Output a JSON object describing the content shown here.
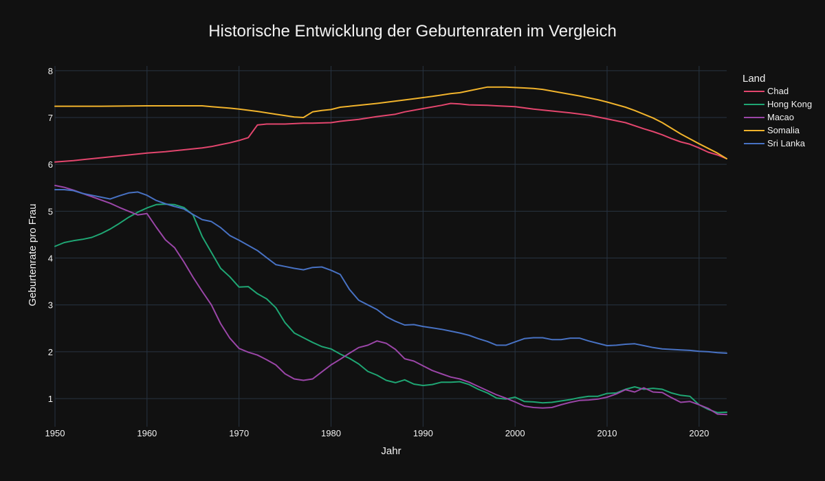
{
  "chart_data": {
    "type": "line",
    "title": "Historische Entwicklung der Geburtenraten im Vergleich",
    "xlabel": "Jahr",
    "ylabel": "Geburtenrate pro Frau",
    "xlim": [
      1950,
      2023
    ],
    "ylim": [
      0.4,
      8.1
    ],
    "x_ticks": [
      1950,
      1960,
      1970,
      1980,
      1990,
      2000,
      2010,
      2020
    ],
    "y_ticks": [
      1,
      2,
      3,
      4,
      5,
      6,
      7,
      8
    ],
    "grid": true,
    "legend": {
      "title": "Land",
      "position": "right"
    },
    "series": [
      {
        "name": "Chad",
        "color": "#e4466e",
        "points": [
          [
            1950,
            6.05
          ],
          [
            1952,
            6.08
          ],
          [
            1955,
            6.14
          ],
          [
            1958,
            6.2
          ],
          [
            1960,
            6.24
          ],
          [
            1962,
            6.27
          ],
          [
            1964,
            6.31
          ],
          [
            1966,
            6.35
          ],
          [
            1967,
            6.38
          ],
          [
            1968,
            6.42
          ],
          [
            1969,
            6.46
          ],
          [
            1970,
            6.51
          ],
          [
            1971,
            6.57
          ],
          [
            1972,
            6.84
          ],
          [
            1973,
            6.86
          ],
          [
            1975,
            6.86
          ],
          [
            1977,
            6.88
          ],
          [
            1978,
            6.88
          ],
          [
            1980,
            6.89
          ],
          [
            1981,
            6.92
          ],
          [
            1983,
            6.96
          ],
          [
            1985,
            7.02
          ],
          [
            1987,
            7.07
          ],
          [
            1988,
            7.12
          ],
          [
            1990,
            7.19
          ],
          [
            1992,
            7.26
          ],
          [
            1993,
            7.3
          ],
          [
            1994,
            7.29
          ],
          [
            1995,
            7.27
          ],
          [
            1997,
            7.26
          ],
          [
            1998,
            7.25
          ],
          [
            2000,
            7.23
          ],
          [
            2002,
            7.18
          ],
          [
            2004,
            7.14
          ],
          [
            2006,
            7.1
          ],
          [
            2008,
            7.05
          ],
          [
            2010,
            6.97
          ],
          [
            2012,
            6.89
          ],
          [
            2014,
            6.76
          ],
          [
            2015,
            6.7
          ],
          [
            2016,
            6.63
          ],
          [
            2017,
            6.55
          ],
          [
            2018,
            6.48
          ],
          [
            2019,
            6.43
          ],
          [
            2020,
            6.35
          ],
          [
            2021,
            6.26
          ],
          [
            2022,
            6.2
          ],
          [
            2023,
            6.12
          ]
        ]
      },
      {
        "name": "Hong Kong",
        "color": "#1fa774",
        "points": [
          [
            1950,
            4.25
          ],
          [
            1951,
            4.33
          ],
          [
            1952,
            4.37
          ],
          [
            1953,
            4.4
          ],
          [
            1954,
            4.44
          ],
          [
            1955,
            4.52
          ],
          [
            1956,
            4.62
          ],
          [
            1957,
            4.74
          ],
          [
            1958,
            4.87
          ],
          [
            1959,
            4.98
          ],
          [
            1960,
            5.07
          ],
          [
            1961,
            5.14
          ],
          [
            1962,
            5.15
          ],
          [
            1963,
            5.14
          ],
          [
            1964,
            5.08
          ],
          [
            1965,
            4.92
          ],
          [
            1966,
            4.46
          ],
          [
            1967,
            4.12
          ],
          [
            1968,
            3.78
          ],
          [
            1969,
            3.6
          ],
          [
            1970,
            3.38
          ],
          [
            1971,
            3.39
          ],
          [
            1972,
            3.24
          ],
          [
            1973,
            3.13
          ],
          [
            1974,
            2.94
          ],
          [
            1975,
            2.62
          ],
          [
            1976,
            2.4
          ],
          [
            1977,
            2.3
          ],
          [
            1978,
            2.2
          ],
          [
            1979,
            2.11
          ],
          [
            1980,
            2.06
          ],
          [
            1981,
            1.95
          ],
          [
            1982,
            1.86
          ],
          [
            1983,
            1.74
          ],
          [
            1984,
            1.58
          ],
          [
            1985,
            1.5
          ],
          [
            1986,
            1.39
          ],
          [
            1987,
            1.34
          ],
          [
            1988,
            1.4
          ],
          [
            1989,
            1.31
          ],
          [
            1990,
            1.28
          ],
          [
            1991,
            1.3
          ],
          [
            1992,
            1.35
          ],
          [
            1993,
            1.35
          ],
          [
            1994,
            1.36
          ],
          [
            1995,
            1.3
          ],
          [
            1996,
            1.2
          ],
          [
            1997,
            1.12
          ],
          [
            1998,
            1.01
          ],
          [
            1999,
            0.99
          ],
          [
            2000,
            1.03
          ],
          [
            2001,
            0.94
          ],
          [
            2002,
            0.93
          ],
          [
            2003,
            0.91
          ],
          [
            2004,
            0.92
          ],
          [
            2005,
            0.95
          ],
          [
            2006,
            0.98
          ],
          [
            2007,
            1.02
          ],
          [
            2008,
            1.05
          ],
          [
            2009,
            1.05
          ],
          [
            2010,
            1.11
          ],
          [
            2011,
            1.12
          ],
          [
            2012,
            1.2
          ],
          [
            2013,
            1.25
          ],
          [
            2014,
            1.2
          ],
          [
            2015,
            1.22
          ],
          [
            2016,
            1.2
          ],
          [
            2017,
            1.12
          ],
          [
            2018,
            1.07
          ],
          [
            2019,
            1.05
          ],
          [
            2020,
            0.87
          ],
          [
            2021,
            0.77
          ],
          [
            2022,
            0.7
          ],
          [
            2023,
            0.71
          ]
        ]
      },
      {
        "name": "Macao",
        "color": "#9b46a8",
        "points": [
          [
            1950,
            5.55
          ],
          [
            1951,
            5.51
          ],
          [
            1952,
            5.45
          ],
          [
            1953,
            5.38
          ],
          [
            1954,
            5.31
          ],
          [
            1955,
            5.24
          ],
          [
            1956,
            5.17
          ],
          [
            1957,
            5.08
          ],
          [
            1958,
            5.0
          ],
          [
            1959,
            4.92
          ],
          [
            1960,
            4.95
          ],
          [
            1961,
            4.66
          ],
          [
            1962,
            4.39
          ],
          [
            1963,
            4.22
          ],
          [
            1964,
            3.92
          ],
          [
            1965,
            3.59
          ],
          [
            1966,
            3.29
          ],
          [
            1967,
            3.0
          ],
          [
            1968,
            2.6
          ],
          [
            1969,
            2.29
          ],
          [
            1970,
            2.07
          ],
          [
            1971,
            1.99
          ],
          [
            1972,
            1.93
          ],
          [
            1973,
            1.83
          ],
          [
            1974,
            1.72
          ],
          [
            1975,
            1.53
          ],
          [
            1976,
            1.42
          ],
          [
            1977,
            1.39
          ],
          [
            1978,
            1.42
          ],
          [
            1979,
            1.57
          ],
          [
            1980,
            1.72
          ],
          [
            1981,
            1.84
          ],
          [
            1982,
            1.97
          ],
          [
            1983,
            2.09
          ],
          [
            1984,
            2.14
          ],
          [
            1985,
            2.23
          ],
          [
            1986,
            2.18
          ],
          [
            1987,
            2.05
          ],
          [
            1988,
            1.85
          ],
          [
            1989,
            1.8
          ],
          [
            1990,
            1.7
          ],
          [
            1991,
            1.6
          ],
          [
            1992,
            1.53
          ],
          [
            1993,
            1.46
          ],
          [
            1994,
            1.42
          ],
          [
            1995,
            1.35
          ],
          [
            1996,
            1.26
          ],
          [
            1997,
            1.17
          ],
          [
            1998,
            1.08
          ],
          [
            1999,
            1.01
          ],
          [
            2000,
            0.93
          ],
          [
            2001,
            0.84
          ],
          [
            2002,
            0.81
          ],
          [
            2003,
            0.8
          ],
          [
            2004,
            0.81
          ],
          [
            2005,
            0.87
          ],
          [
            2006,
            0.92
          ],
          [
            2007,
            0.96
          ],
          [
            2008,
            0.97
          ],
          [
            2009,
            0.99
          ],
          [
            2010,
            1.03
          ],
          [
            2011,
            1.1
          ],
          [
            2012,
            1.19
          ],
          [
            2013,
            1.14
          ],
          [
            2014,
            1.23
          ],
          [
            2015,
            1.14
          ],
          [
            2016,
            1.13
          ],
          [
            2017,
            1.02
          ],
          [
            2018,
            0.92
          ],
          [
            2019,
            0.94
          ],
          [
            2020,
            0.87
          ],
          [
            2021,
            0.79
          ],
          [
            2022,
            0.67
          ],
          [
            2023,
            0.66
          ]
        ]
      },
      {
        "name": "Somalia",
        "color": "#f2b42c",
        "points": [
          [
            1950,
            7.24
          ],
          [
            1955,
            7.24
          ],
          [
            1960,
            7.25
          ],
          [
            1966,
            7.25
          ],
          [
            1967,
            7.23
          ],
          [
            1969,
            7.2
          ],
          [
            1970,
            7.18
          ],
          [
            1972,
            7.13
          ],
          [
            1974,
            7.07
          ],
          [
            1976,
            7.01
          ],
          [
            1977,
            7.0
          ],
          [
            1978,
            7.12
          ],
          [
            1979,
            7.15
          ],
          [
            1980,
            7.17
          ],
          [
            1981,
            7.22
          ],
          [
            1983,
            7.26
          ],
          [
            1985,
            7.3
          ],
          [
            1987,
            7.35
          ],
          [
            1989,
            7.4
          ],
          [
            1991,
            7.45
          ],
          [
            1993,
            7.51
          ],
          [
            1994,
            7.53
          ],
          [
            1995,
            7.57
          ],
          [
            1997,
            7.65
          ],
          [
            1998,
            7.65
          ],
          [
            1999,
            7.65
          ],
          [
            2001,
            7.63
          ],
          [
            2002,
            7.62
          ],
          [
            2003,
            7.6
          ],
          [
            2005,
            7.53
          ],
          [
            2007,
            7.46
          ],
          [
            2009,
            7.38
          ],
          [
            2010,
            7.33
          ],
          [
            2012,
            7.22
          ],
          [
            2013,
            7.15
          ],
          [
            2015,
            6.99
          ],
          [
            2016,
            6.89
          ],
          [
            2018,
            6.65
          ],
          [
            2020,
            6.44
          ],
          [
            2022,
            6.24
          ],
          [
            2023,
            6.12
          ]
        ]
      },
      {
        "name": "Sri Lanka",
        "color": "#4872c4",
        "points": [
          [
            1950,
            5.46
          ],
          [
            1951,
            5.46
          ],
          [
            1952,
            5.44
          ],
          [
            1953,
            5.38
          ],
          [
            1954,
            5.34
          ],
          [
            1955,
            5.3
          ],
          [
            1956,
            5.26
          ],
          [
            1957,
            5.33
          ],
          [
            1958,
            5.39
          ],
          [
            1959,
            5.41
          ],
          [
            1960,
            5.34
          ],
          [
            1961,
            5.23
          ],
          [
            1962,
            5.16
          ],
          [
            1963,
            5.1
          ],
          [
            1964,
            5.05
          ],
          [
            1965,
            4.93
          ],
          [
            1966,
            4.82
          ],
          [
            1967,
            4.78
          ],
          [
            1968,
            4.65
          ],
          [
            1969,
            4.48
          ],
          [
            1970,
            4.38
          ],
          [
            1971,
            4.27
          ],
          [
            1972,
            4.16
          ],
          [
            1973,
            4.01
          ],
          [
            1974,
            3.86
          ],
          [
            1975,
            3.82
          ],
          [
            1976,
            3.78
          ],
          [
            1977,
            3.75
          ],
          [
            1978,
            3.8
          ],
          [
            1979,
            3.81
          ],
          [
            1980,
            3.74
          ],
          [
            1981,
            3.65
          ],
          [
            1982,
            3.33
          ],
          [
            1983,
            3.1
          ],
          [
            1984,
            3.0
          ],
          [
            1985,
            2.9
          ],
          [
            1986,
            2.75
          ],
          [
            1987,
            2.65
          ],
          [
            1988,
            2.57
          ],
          [
            1989,
            2.58
          ],
          [
            1990,
            2.54
          ],
          [
            1991,
            2.51
          ],
          [
            1992,
            2.48
          ],
          [
            1993,
            2.44
          ],
          [
            1994,
            2.4
          ],
          [
            1995,
            2.35
          ],
          [
            1996,
            2.28
          ],
          [
            1997,
            2.22
          ],
          [
            1998,
            2.14
          ],
          [
            1999,
            2.14
          ],
          [
            2000,
            2.21
          ],
          [
            2001,
            2.28
          ],
          [
            2002,
            2.3
          ],
          [
            2003,
            2.3
          ],
          [
            2004,
            2.26
          ],
          [
            2005,
            2.26
          ],
          [
            2006,
            2.29
          ],
          [
            2007,
            2.29
          ],
          [
            2008,
            2.23
          ],
          [
            2009,
            2.18
          ],
          [
            2010,
            2.13
          ],
          [
            2011,
            2.14
          ],
          [
            2012,
            2.16
          ],
          [
            2013,
            2.17
          ],
          [
            2014,
            2.13
          ],
          [
            2015,
            2.09
          ],
          [
            2016,
            2.06
          ],
          [
            2017,
            2.05
          ],
          [
            2018,
            2.04
          ],
          [
            2019,
            2.03
          ],
          [
            2020,
            2.01
          ],
          [
            2021,
            2.0
          ],
          [
            2022,
            1.98
          ],
          [
            2023,
            1.97
          ]
        ]
      }
    ]
  }
}
